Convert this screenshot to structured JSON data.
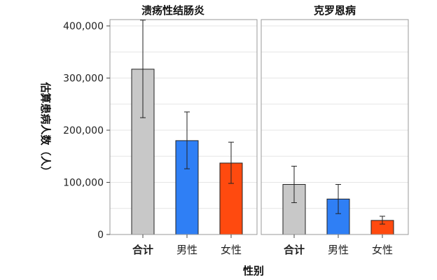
{
  "chart_data": {
    "type": "bar",
    "xlabel": "性别",
    "ylabel": "估算患病人数（人）",
    "ylim": [
      0,
      400000
    ],
    "yticks": [
      0,
      100000,
      200000,
      300000,
      400000
    ],
    "ytick_labels": [
      "0",
      "100,000",
      "200,000",
      "300,000",
      "400,000"
    ],
    "grid": true,
    "categories": [
      "合计",
      "男性",
      "女性"
    ],
    "colors": [
      "#c8c8c8",
      "#2f7ff5",
      "#ff4a0f"
    ],
    "panels": [
      {
        "title": "溃疡性结肠炎",
        "values": [
          317000,
          180000,
          137000
        ],
        "error_low": [
          224000,
          126000,
          98000
        ],
        "error_high": [
          411000,
          235000,
          177000
        ]
      },
      {
        "title": "克罗恩病",
        "values": [
          96000,
          68000,
          27000
        ],
        "error_low": [
          61000,
          40000,
          20000
        ],
        "error_high": [
          131000,
          96000,
          35000
        ]
      }
    ]
  }
}
